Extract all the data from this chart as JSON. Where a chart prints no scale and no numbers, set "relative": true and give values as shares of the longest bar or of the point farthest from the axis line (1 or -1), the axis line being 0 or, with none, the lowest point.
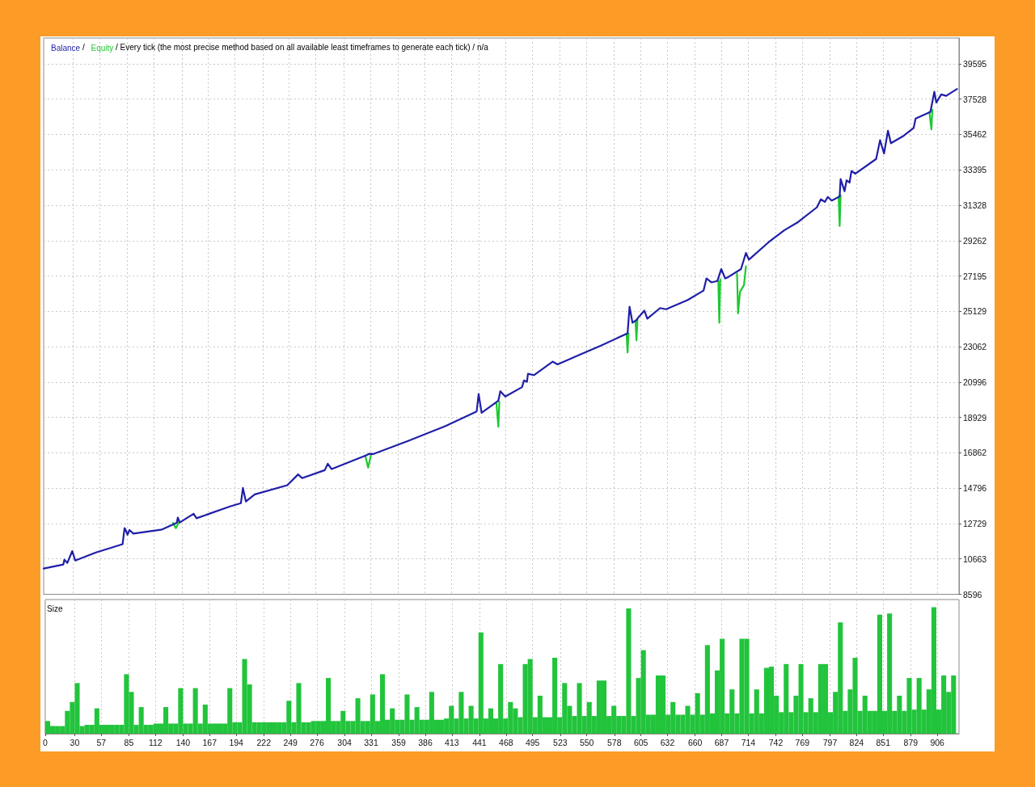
{
  "chart_data": [
    {
      "type": "line",
      "title": "Every tick (the most precise method based on all available least timeframes to generate each tick) / n/a",
      "annotations": [
        "/",
        "/"
      ],
      "series": [
        {
          "name": "Balance",
          "color": "#1f1fa8",
          "x": [
            0,
            20,
            21,
            24,
            29,
            32,
            53,
            80,
            82,
            83,
            85,
            87,
            91,
            120,
            135,
            136,
            138,
            152,
            155,
            189,
            200,
            202,
            205,
            214,
            247,
            258,
            262,
            285,
            288,
            292,
            326,
            330,
            334,
            371,
            407,
            439,
            441,
            444,
            461,
            463,
            468,
            485,
            487,
            490,
            491,
            497,
            516,
            521,
            543,
            565,
            592,
            594,
            597,
            601,
            603,
            609,
            612,
            625,
            631,
            653,
            669,
            672,
            677,
            683,
            687,
            691,
            694,
            707,
            712,
            715,
            735,
            751,
            765,
            784,
            788,
            792,
            795,
            799,
            807,
            808,
            812,
            814,
            817,
            819,
            823,
            844,
            848,
            852,
            856,
            859,
            872,
            882,
            884,
            899,
            903,
            905,
            910,
            915,
            926
          ],
          "values": [
            10100,
            10340,
            10620,
            10430,
            11120,
            10570,
            11040,
            11520,
            12460,
            12380,
            12070,
            12350,
            12140,
            12380,
            12770,
            13080,
            12790,
            13300,
            13040,
            13730,
            13920,
            14810,
            14020,
            14430,
            14970,
            15600,
            15380,
            15850,
            16220,
            15910,
            16690,
            16800,
            16790,
            17590,
            18420,
            19280,
            20300,
            19200,
            19910,
            20460,
            20150,
            20700,
            21090,
            21010,
            21480,
            21400,
            22190,
            22030,
            22580,
            23130,
            23840,
            25400,
            24460,
            24620,
            24780,
            25170,
            24700,
            25320,
            25250,
            25790,
            26340,
            27050,
            26820,
            26900,
            27600,
            27050,
            27130,
            27600,
            28540,
            28150,
            29170,
            29870,
            30350,
            31210,
            31680,
            31520,
            31810,
            31600,
            31840,
            32860,
            32150,
            32780,
            32650,
            33330,
            33170,
            34030,
            35130,
            34350,
            35680,
            34950,
            35390,
            35840,
            36390,
            36780,
            37960,
            37330,
            37800,
            37720,
            38120
          ]
        },
        {
          "name": "Equity",
          "color": "#1ec832",
          "x": [
            131,
            134,
            137,
            200,
            326,
            329,
            332,
            400,
            459,
            461,
            462,
            530,
            591,
            592,
            593,
            597,
            600,
            601,
            602,
            650,
            684,
            685,
            686,
            695,
            703,
            704,
            706,
            710,
            712,
            760,
            806,
            807,
            808,
            850,
            898,
            900,
            901
          ],
          "values": [
            12770,
            12460,
            12800,
            null,
            16690,
            16000,
            16790,
            null,
            19750,
            18380,
            19850,
            null,
            23800,
            22730,
            23830,
            null,
            24600,
            23440,
            24650,
            null,
            26900,
            24460,
            27000,
            null,
            27330,
            25010,
            26270,
            26660,
            27760,
            null,
            31830,
            30110,
            31900,
            null,
            36780,
            35760,
            36900
          ]
        }
      ],
      "xlim": [
        0,
        928
      ],
      "xticks": [
        0,
        30,
        57,
        85,
        112,
        140,
        167,
        194,
        222,
        249,
        276,
        304,
        331,
        359,
        386,
        413,
        441,
        468,
        495,
        523,
        550,
        578,
        605,
        632,
        660,
        687,
        714,
        742,
        769,
        797,
        824,
        851,
        879,
        906
      ],
      "ylim": [
        8596,
        41100
      ],
      "yticks": [
        8596,
        10663,
        12729,
        14796,
        16862,
        18929,
        20996,
        23062,
        25129,
        27195,
        29262,
        31328,
        33395,
        35462,
        37528,
        39595
      ],
      "grid": true,
      "legend": "top left",
      "tick_labels": "y"
    },
    {
      "type": "bar",
      "title": "Size",
      "color": "#22c43c",
      "relative": true,
      "x": [
        2.5,
        7.5,
        12.5,
        17.5,
        22.5,
        27.5,
        32.5,
        37.5,
        42.5,
        47.5,
        52.5,
        57.5,
        62.5,
        67.5,
        72.5,
        77.5,
        82.5,
        87.5,
        92.5,
        97.5,
        102.5,
        107.5,
        112.5,
        117.5,
        122.5,
        127.5,
        132.5,
        137.5,
        142.5,
        147.5,
        152.5,
        157.5,
        162.5,
        167.5,
        172.5,
        177.5,
        182.5,
        187.5,
        192.5,
        197.5,
        202.5,
        207.5,
        212.5,
        217.5,
        222.5,
        227.5,
        232.5,
        237.5,
        242.5,
        247.5,
        252.5,
        257.5,
        262.5,
        267.5,
        272.5,
        277.5,
        282.5,
        287.5,
        292.5,
        297.5,
        302.5,
        307.5,
        312.5,
        317.5,
        322.5,
        327.5,
        332.5,
        337.5,
        342.5,
        347.5,
        352.5,
        357.5,
        362.5,
        367.5,
        372.5,
        377.5,
        382.5,
        387.5,
        392.5,
        397.5,
        402.5,
        407.5,
        412.5,
        417.5,
        422.5,
        427.5,
        432.5,
        437.5,
        442.5,
        447.5,
        452.5,
        457.5,
        462.5,
        467.5,
        472.5,
        477.5,
        482.5,
        487.5,
        492.5,
        497.5,
        502.5,
        507.5,
        512.5,
        517.5,
        522.5,
        527.5,
        532.5,
        537.5,
        542.5,
        547.5,
        552.5,
        557.5,
        562.5,
        567.5,
        572.5,
        577.5,
        582.5,
        587.5,
        592.5,
        597.5,
        602.5,
        607.5,
        612.5,
        617.5,
        622.5,
        627.5,
        632.5,
        637.5,
        642.5,
        647.5,
        652.5,
        657.5,
        662.5,
        667.5,
        672.5,
        677.5,
        682.5,
        687.5,
        692.5,
        697.5,
        702.5,
        707.5,
        712.5,
        717.5,
        722.5,
        727.5,
        732.5,
        737.5,
        742.5,
        747.5,
        752.5,
        757.5,
        762.5,
        767.5,
        772.5,
        777.5,
        782.5,
        787.5,
        792.5,
        797.5,
        802.5,
        807.5,
        812.5,
        817.5,
        822.5,
        827.5,
        832.5,
        837.5,
        842.5,
        847.5,
        852.5,
        857.5,
        862.5,
        867.5,
        872.5,
        877.5,
        882.5,
        887.5,
        892.5,
        897.5,
        902.5,
        907.5,
        912.5,
        917.5,
        922.5
      ],
      "values": [
        0.1,
        0.06,
        0.06,
        0.06,
        0.18,
        0.25,
        0.4,
        0.06,
        0.07,
        0.07,
        0.2,
        0.07,
        0.07,
        0.07,
        0.07,
        0.07,
        0.47,
        0.33,
        0.07,
        0.21,
        0.07,
        0.07,
        0.08,
        0.08,
        0.21,
        0.08,
        0.08,
        0.36,
        0.08,
        0.08,
        0.36,
        0.08,
        0.23,
        0.08,
        0.08,
        0.08,
        0.08,
        0.36,
        0.09,
        0.09,
        0.59,
        0.39,
        0.09,
        0.09,
        0.09,
        0.09,
        0.09,
        0.09,
        0.09,
        0.26,
        0.09,
        0.4,
        0.09,
        0.09,
        0.1,
        0.1,
        0.1,
        0.44,
        0.1,
        0.1,
        0.18,
        0.1,
        0.1,
        0.28,
        0.1,
        0.1,
        0.31,
        0.1,
        0.47,
        0.11,
        0.2,
        0.11,
        0.11,
        0.31,
        0.11,
        0.21,
        0.11,
        0.11,
        0.33,
        0.11,
        0.11,
        0.12,
        0.22,
        0.12,
        0.33,
        0.12,
        0.22,
        0.12,
        0.8,
        0.12,
        0.2,
        0.12,
        0.55,
        0.12,
        0.25,
        0.2,
        0.13,
        0.55,
        0.59,
        0.13,
        0.3,
        0.13,
        0.13,
        0.6,
        0.13,
        0.4,
        0.22,
        0.14,
        0.4,
        0.14,
        0.25,
        0.14,
        0.42,
        0.42,
        0.14,
        0.22,
        0.14,
        0.14,
        0.99,
        0.14,
        0.44,
        0.66,
        0.15,
        0.15,
        0.46,
        0.46,
        0.15,
        0.25,
        0.15,
        0.15,
        0.22,
        0.15,
        0.32,
        0.15,
        0.7,
        0.16,
        0.5,
        0.75,
        0.16,
        0.35,
        0.16,
        0.75,
        0.75,
        0.16,
        0.35,
        0.16,
        0.52,
        0.53,
        0.3,
        0.17,
        0.55,
        0.17,
        0.3,
        0.55,
        0.17,
        0.28,
        0.17,
        0.55,
        0.55,
        0.17,
        0.33,
        0.88,
        0.18,
        0.35,
        0.6,
        0.18,
        0.3,
        0.18,
        0.18,
        0.94,
        0.18,
        0.95,
        0.18,
        0.3,
        0.18,
        0.44,
        0.19,
        0.44,
        0.19,
        0.35,
        1,
        0.19,
        0.46,
        0.33,
        0.46
      ],
      "xlim": [
        0,
        928
      ],
      "xticks": [
        0,
        30,
        57,
        85,
        112,
        140,
        167,
        194,
        222,
        249,
        276,
        304,
        331,
        359,
        386,
        413,
        441,
        468,
        495,
        523,
        550,
        578,
        605,
        632,
        660,
        687,
        714,
        742,
        769,
        797,
        824,
        851,
        879,
        906
      ],
      "grid": "x"
    }
  ]
}
